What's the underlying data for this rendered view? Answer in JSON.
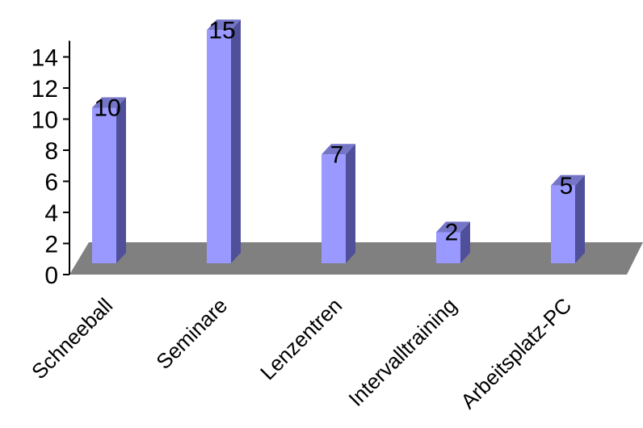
{
  "chart_data": {
    "type": "bar",
    "categories": [
      "Schneeball",
      "Seminare",
      "Lenzentren",
      "Intervalltraining",
      "Arbeitsplatz-PC"
    ],
    "values": [
      10,
      15,
      7,
      2,
      5
    ],
    "data_labels": [
      "10",
      "15",
      "7",
      "2",
      "5"
    ],
    "y_ticks": [
      0,
      2,
      4,
      6,
      8,
      10,
      12,
      14
    ],
    "ylim": [
      0,
      15
    ],
    "grid": false,
    "legend": false,
    "three_d": true,
    "colors": {
      "bar_front": "#9999ff",
      "bar_side": "#4f4f9a",
      "bar_top": "#7575c8",
      "floor": "#808080",
      "axis": "#000000"
    }
  }
}
